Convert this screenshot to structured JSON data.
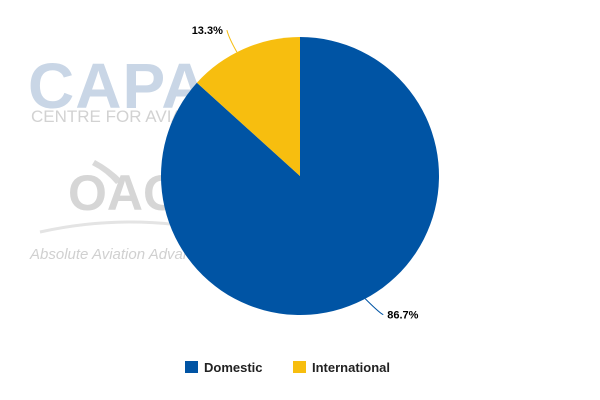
{
  "watermark": {
    "line1": "CAPA",
    "line2": "CENTRE FOR AVIATION",
    "line3": "OAG",
    "line4": "Absolute Aviation Advantage"
  },
  "chart_data": {
    "type": "pie",
    "title": "",
    "slices": [
      {
        "label": "Domestic",
        "value": 86.7,
        "display": "86.7%",
        "color": "#0054A4"
      },
      {
        "label": "International",
        "value": 13.3,
        "display": "13.3%",
        "color": "#F7BE0F"
      }
    ],
    "start_angle_deg": 0,
    "direction": "clockwise",
    "legend_position": "bottom"
  }
}
